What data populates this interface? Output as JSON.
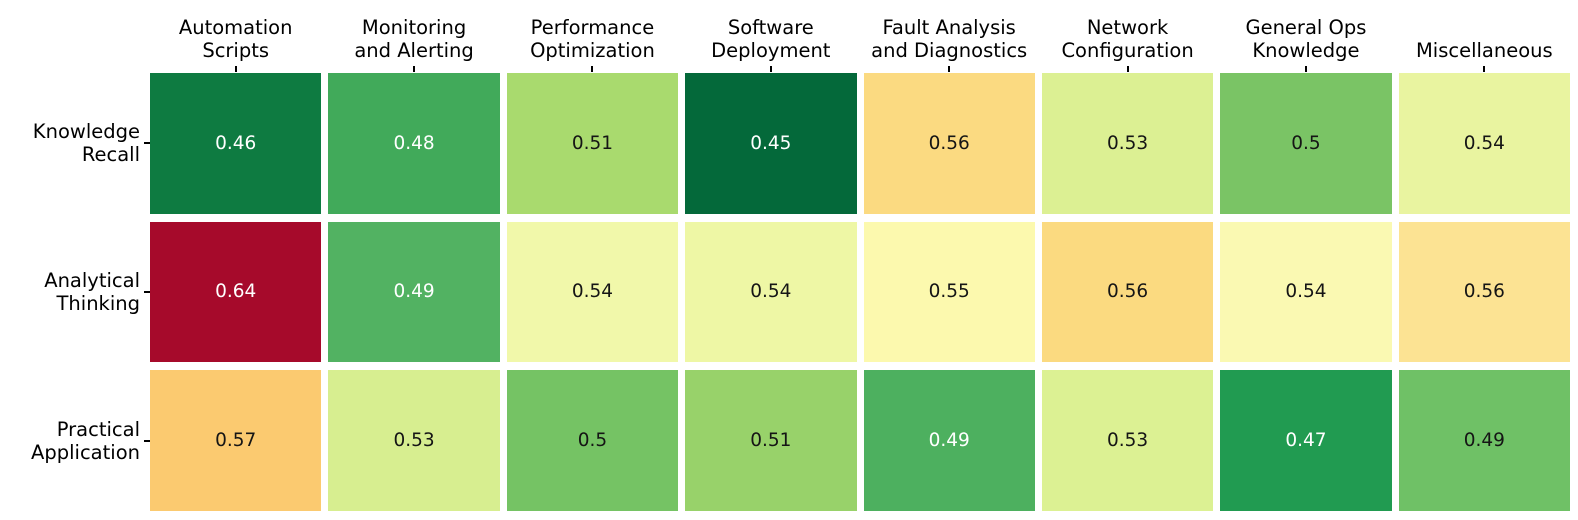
{
  "chart_data": {
    "type": "heatmap",
    "title": "",
    "xlabel": "",
    "ylabel": "",
    "legend": "none",
    "grid": "off",
    "background_color": "#ffffff",
    "axis_tick_color": "#000000",
    "label_text_color": "#000000",
    "annotation_dark_color": "#151515",
    "annotation_light_color": "#ffffff",
    "columns": [
      "Automation\nScripts",
      "Monitoring\nand Alerting",
      "Performance\nOptimization",
      "Software\nDeployment",
      "Fault Analysis\nand Diagnostics",
      "Network\nConfiguration",
      "General Ops\nKnowledge",
      "Miscellaneous"
    ],
    "rows": [
      "Knowledge\nRecall",
      "Analytical\nThinking",
      "Practical\nApplication"
    ],
    "values": [
      [
        0.46,
        0.48,
        0.51,
        0.45,
        0.56,
        0.53,
        0.5,
        0.54
      ],
      [
        0.64,
        0.49,
        0.54,
        0.54,
        0.55,
        0.56,
        0.54,
        0.56
      ],
      [
        0.57,
        0.53,
        0.5,
        0.51,
        0.49,
        0.53,
        0.47,
        0.49
      ]
    ],
    "cell_colors": [
      [
        "#0e7b41",
        "#41aa5a",
        "#a9da6e",
        "#04693a",
        "#fbda81",
        "#dcf093",
        "#7ac465",
        "#e9f4a0"
      ],
      [
        "#a60a2b",
        "#52b262",
        "#f1f8aa",
        "#eef7a5",
        "#fcf9ae",
        "#fbda80",
        "#faf9b2",
        "#fce393"
      ],
      [
        "#fbca70",
        "#d7ee90",
        "#75c364",
        "#98d26a",
        "#4db05f",
        "#dcf193",
        "#219b51",
        "#6fc166"
      ]
    ],
    "text_colors": [
      [
        "#ffffff",
        "#ffffff",
        "#151515",
        "#ffffff",
        "#151515",
        "#151515",
        "#151515",
        "#151515"
      ],
      [
        "#ffffff",
        "#ffffff",
        "#151515",
        "#151515",
        "#151515",
        "#151515",
        "#151515",
        "#151515"
      ],
      [
        "#151515",
        "#151515",
        "#151515",
        "#151515",
        "#ffffff",
        "#151515",
        "#ffffff",
        "#151515"
      ]
    ]
  }
}
